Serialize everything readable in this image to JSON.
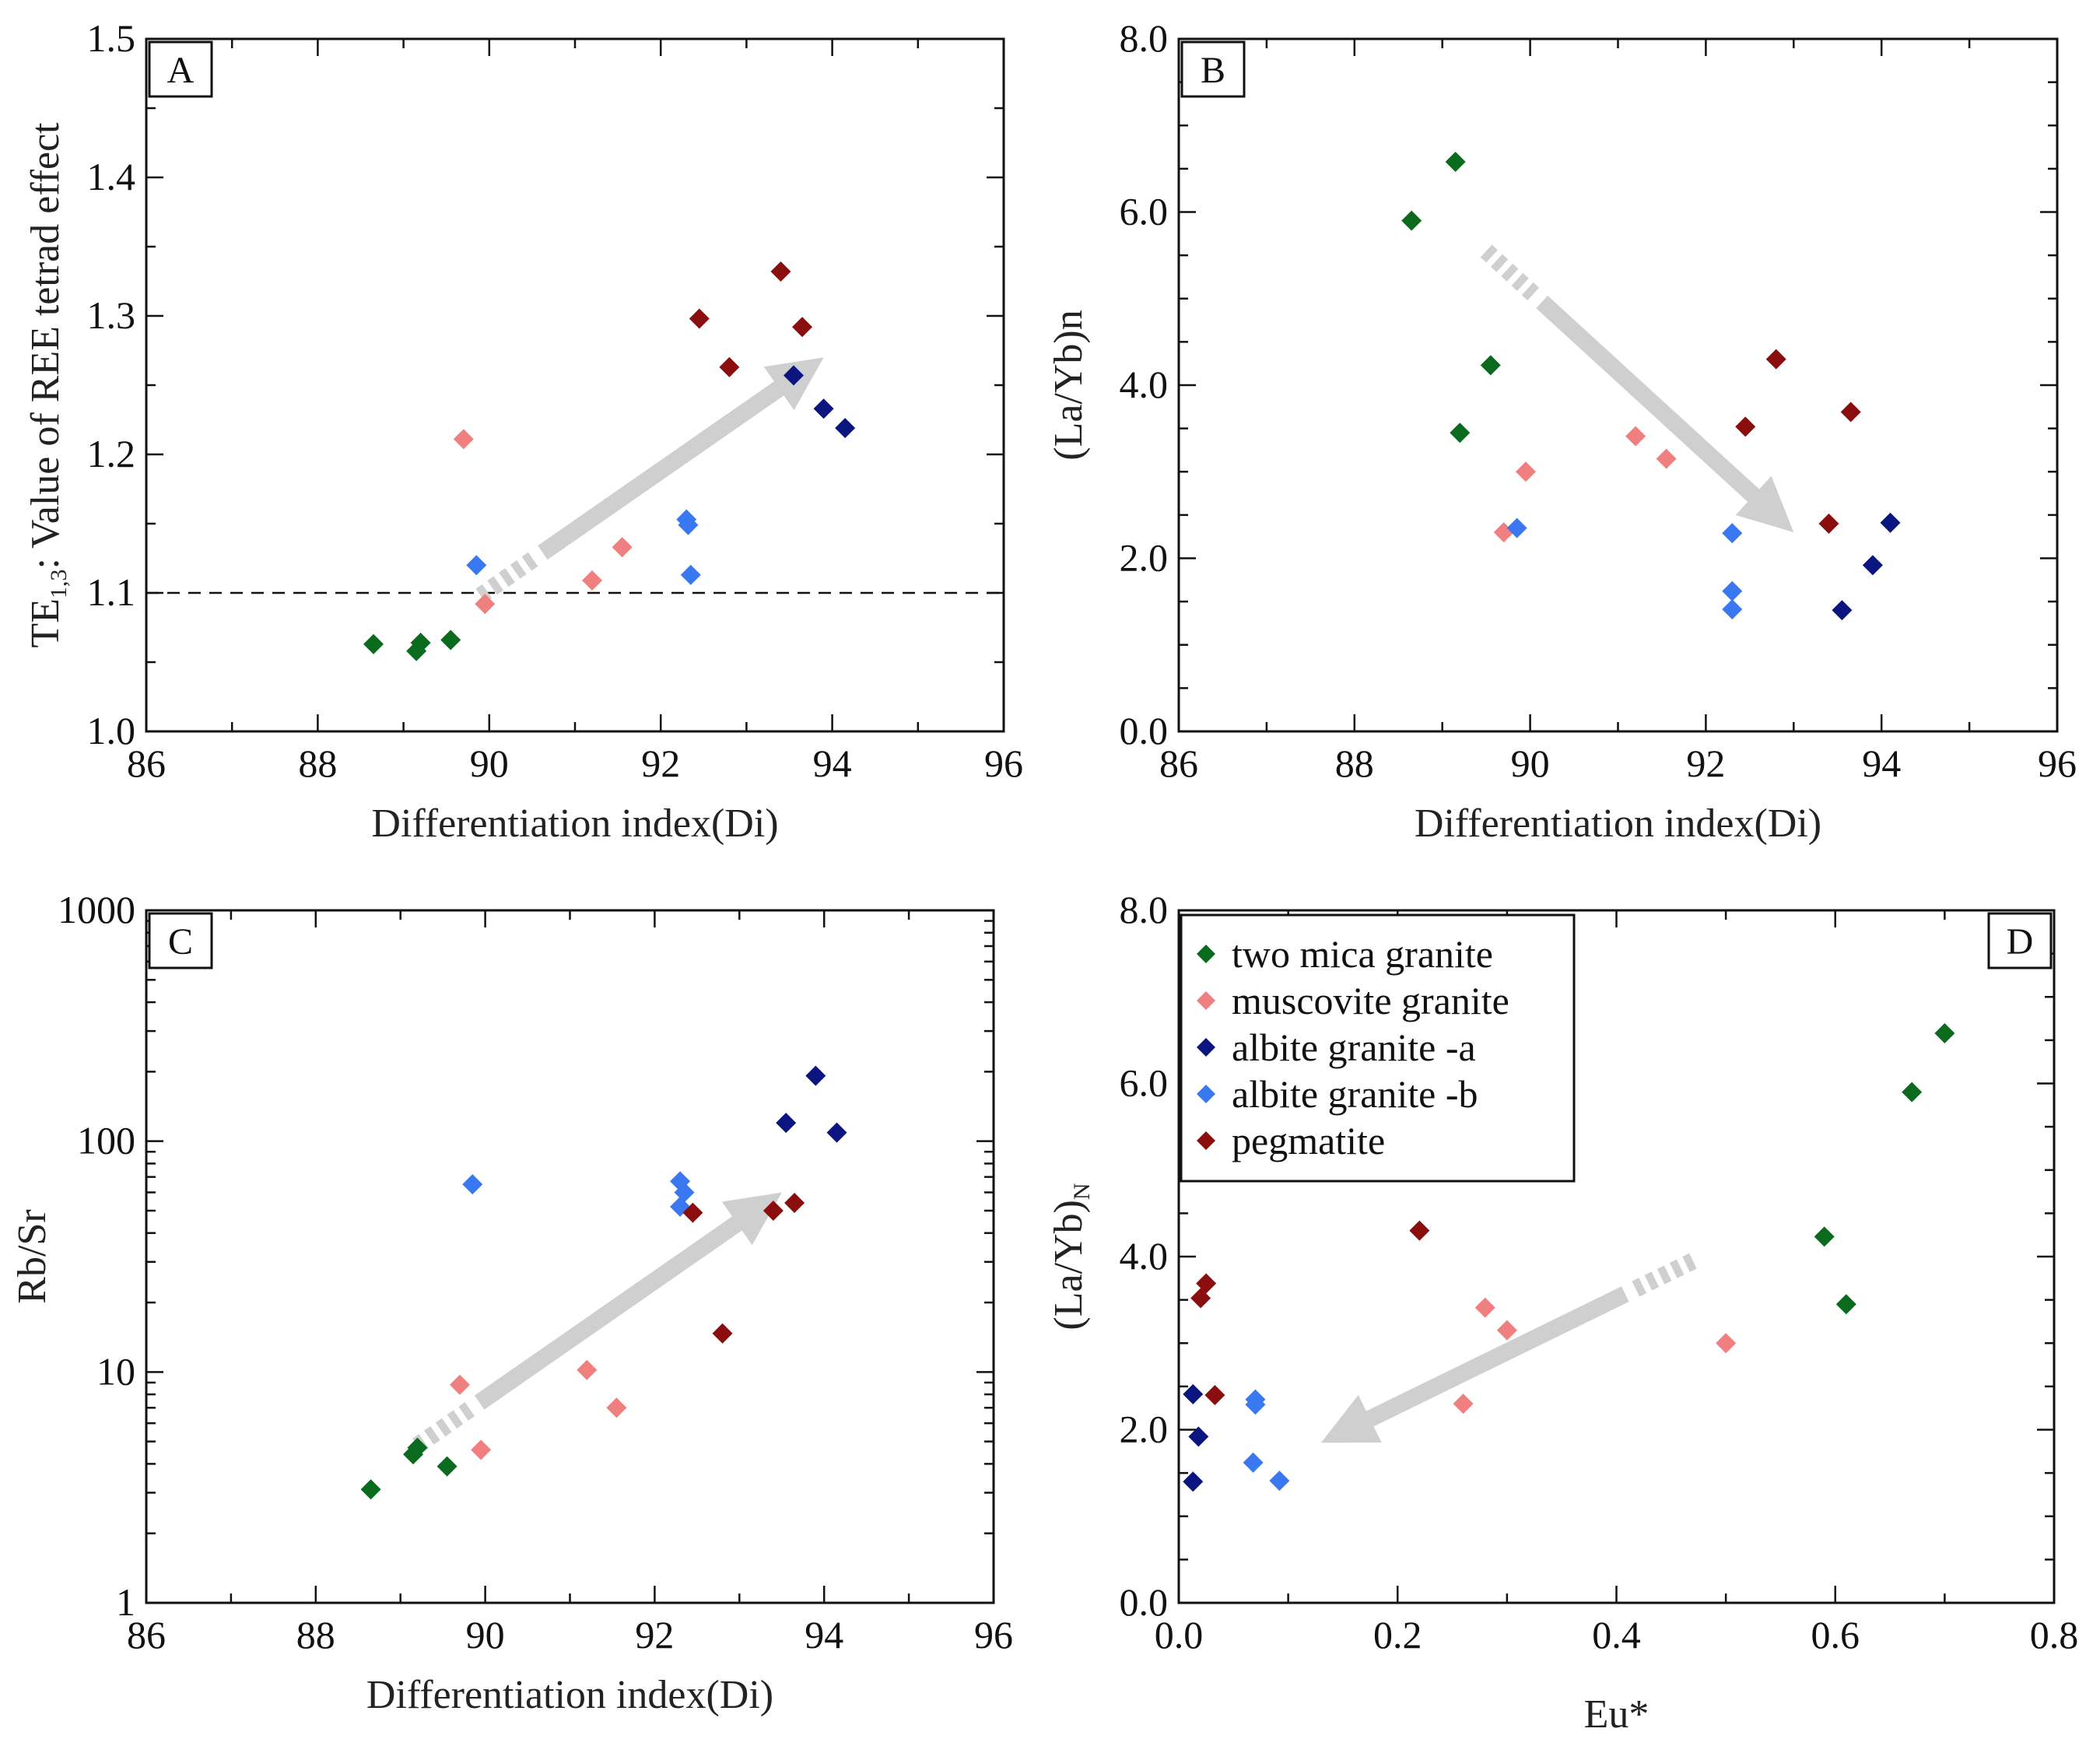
{
  "figure": {
    "colors": {
      "two_mica_granite": "#0a6b1e",
      "muscovite_granite": "#f08080",
      "albite_granite_a": "#0a1580",
      "albite_granite_b": "#3a78f2",
      "pegmatite": "#8b0e0e",
      "arrow": "#cfcfcf"
    },
    "legend": {
      "entries": [
        {
          "key": "two_mica_granite",
          "label": "two mica granite"
        },
        {
          "key": "muscovite_granite",
          "label": "muscovite granite"
        },
        {
          "key": "albite_granite_a",
          "label": "albite granite -a"
        },
        {
          "key": "albite_granite_b",
          "label": "albite granite -b"
        },
        {
          "key": "pegmatite",
          "label": "pegmatite"
        }
      ]
    }
  },
  "chart_data": [
    {
      "id": "A",
      "panel_label": "A",
      "type": "scatter",
      "xlabel": "Differentiation index(Di)",
      "ylabel_main": "TE",
      "ylabel_sub": "1,3",
      "ylabel_rest": ": Value of REE tetrad effect",
      "xlim": [
        86,
        96
      ],
      "ylim": [
        1.0,
        1.5
      ],
      "xticks": [
        86,
        88,
        90,
        92,
        94,
        96
      ],
      "yticks": [
        1.0,
        1.1,
        1.2,
        1.3,
        1.4,
        1.5
      ],
      "xtick_labels": [
        "86",
        "88",
        "90",
        "92",
        "94",
        "96"
      ],
      "ytick_labels": [
        "1.0",
        "1.1",
        "1.2",
        "1.3",
        "1.4",
        "1.5"
      ],
      "reference_line_y": 1.1,
      "trend_arrow": {
        "from": [
          89.9,
          1.098
        ],
        "to": [
          93.9,
          1.27
        ]
      },
      "series": [
        {
          "key": "two_mica_granite",
          "name": "two mica granite",
          "x": [
            88.65,
            89.15,
            89.2,
            89.55
          ],
          "y": [
            1.063,
            1.058,
            1.064,
            1.066
          ]
        },
        {
          "key": "muscovite_granite",
          "name": "muscovite granite",
          "x": [
            89.7,
            89.95,
            91.2,
            91.55
          ],
          "y": [
            1.211,
            1.092,
            1.109,
            1.133
          ]
        },
        {
          "key": "albite_granite_a",
          "name": "albite granite -a",
          "x": [
            93.55,
            93.9,
            94.15
          ],
          "y": [
            1.257,
            1.233,
            1.219
          ]
        },
        {
          "key": "albite_granite_b",
          "name": "albite granite -b",
          "x": [
            89.85,
            92.3,
            92.32,
            92.35
          ],
          "y": [
            1.12,
            1.153,
            1.149,
            1.113
          ]
        },
        {
          "key": "pegmatite",
          "name": "pegmatite",
          "x": [
            92.45,
            92.8,
            93.4,
            93.65
          ],
          "y": [
            1.298,
            1.263,
            1.332,
            1.292
          ]
        }
      ]
    },
    {
      "id": "B",
      "panel_label": "B",
      "type": "scatter",
      "xlabel": "Differentiation index(Di)",
      "ylabel_main": "(La/Yb)n",
      "ylabel_sub": "",
      "ylabel_rest": "",
      "xlim": [
        86,
        96
      ],
      "ylim": [
        0,
        8
      ],
      "xticks": [
        86,
        88,
        90,
        92,
        94,
        96
      ],
      "yticks": [
        0,
        2,
        4,
        6,
        8
      ],
      "xtick_labels": [
        "86",
        "88",
        "90",
        "92",
        "94",
        "96"
      ],
      "ytick_labels": [
        "0.0",
        "2.0",
        "4.0",
        "6.0",
        "8.0"
      ],
      "trend_arrow": {
        "from": [
          89.5,
          5.55
        ],
        "to": [
          93.0,
          2.3
        ]
      },
      "series": [
        {
          "key": "two_mica_granite",
          "name": "two mica granite",
          "x": [
            88.65,
            89.15,
            89.55,
            89.2
          ],
          "y": [
            5.9,
            6.58,
            4.23,
            3.45
          ]
        },
        {
          "key": "muscovite_granite",
          "name": "muscovite granite",
          "x": [
            89.7,
            89.95,
            91.2,
            91.55
          ],
          "y": [
            2.3,
            3.0,
            3.41,
            3.15
          ]
        },
        {
          "key": "albite_granite_a",
          "name": "albite granite -a",
          "x": [
            93.55,
            93.9,
            94.1
          ],
          "y": [
            1.4,
            1.92,
            2.41
          ]
        },
        {
          "key": "albite_granite_b",
          "name": "albite granite -b",
          "x": [
            89.85,
            92.3,
            92.3,
            92.3
          ],
          "y": [
            2.35,
            2.29,
            1.62,
            1.41
          ]
        },
        {
          "key": "pegmatite",
          "name": "pegmatite",
          "x": [
            92.45,
            92.8,
            93.4,
            93.65
          ],
          "y": [
            3.52,
            4.3,
            2.4,
            3.69
          ]
        }
      ]
    },
    {
      "id": "C",
      "panel_label": "C",
      "type": "scatter",
      "yscale": "log",
      "xlabel": "Differentiation index(Di)",
      "ylabel_main": "Rb/Sr",
      "ylabel_sub": "",
      "ylabel_rest": "",
      "xlim": [
        86,
        96
      ],
      "ylim": [
        1,
        1000
      ],
      "xticks": [
        86,
        88,
        90,
        92,
        94,
        96
      ],
      "yticks": [
        1,
        10,
        100,
        1000
      ],
      "xtick_labels": [
        "86",
        "88",
        "90",
        "92",
        "94",
        "96"
      ],
      "ytick_labels": [
        "1",
        "10",
        "100",
        "1000"
      ],
      "trend_arrow": {
        "from": [
          89.2,
          4.8
        ],
        "to": [
          93.5,
          60
        ]
      },
      "series": [
        {
          "key": "two_mica_granite",
          "name": "two mica granite",
          "x": [
            88.65,
            89.15,
            89.2,
            89.55
          ],
          "y": [
            3.1,
            4.4,
            4.7,
            3.9
          ]
        },
        {
          "key": "muscovite_granite",
          "name": "muscovite granite",
          "x": [
            89.7,
            89.95,
            91.2,
            91.55
          ],
          "y": [
            8.8,
            4.6,
            10.2,
            7.0
          ]
        },
        {
          "key": "albite_granite_a",
          "name": "albite granite -a",
          "x": [
            93.55,
            93.9,
            94.15
          ],
          "y": [
            120,
            192,
            109
          ]
        },
        {
          "key": "albite_granite_b",
          "name": "albite granite -b",
          "x": [
            89.85,
            92.3,
            92.35,
            92.3
          ],
          "y": [
            65,
            67,
            60,
            52
          ]
        },
        {
          "key": "pegmatite",
          "name": "pegmatite",
          "x": [
            92.45,
            92.8,
            93.4,
            93.65
          ],
          "y": [
            49,
            14.7,
            50,
            54
          ]
        }
      ]
    },
    {
      "id": "D",
      "panel_label": "D",
      "type": "scatter",
      "xlabel": "Eu*",
      "ylabel_main": "(La/Yb)",
      "ylabel_sub": "N",
      "ylabel_rest": "",
      "xlim": [
        0,
        0.8
      ],
      "ylim": [
        0,
        8
      ],
      "xticks": [
        0,
        0.2,
        0.4,
        0.6,
        0.8
      ],
      "yticks": [
        0,
        2,
        4,
        6,
        8
      ],
      "xtick_labels": [
        "0.0",
        "0.2",
        "0.4",
        "0.6",
        "0.8"
      ],
      "ytick_labels": [
        "0.0",
        "2.0",
        "4.0",
        "6.0",
        "8.0"
      ],
      "trend_arrow": {
        "from": [
          0.47,
          3.95
        ],
        "to": [
          0.13,
          1.85
        ]
      },
      "series": [
        {
          "key": "two_mica_granite",
          "name": "two mica granite",
          "x": [
            0.59,
            0.61,
            0.67,
            0.7
          ],
          "y": [
            4.23,
            3.45,
            5.9,
            6.58
          ]
        },
        {
          "key": "muscovite_granite",
          "name": "muscovite granite",
          "x": [
            0.26,
            0.28,
            0.3,
            0.5
          ],
          "y": [
            2.3,
            3.41,
            3.15,
            3.0
          ]
        },
        {
          "key": "albite_granite_a",
          "name": "albite granite -a",
          "x": [
            0.013,
            0.018,
            0.013
          ],
          "y": [
            2.41,
            1.92,
            1.4
          ]
        },
        {
          "key": "albite_granite_b",
          "name": "albite granite -b",
          "x": [
            0.07,
            0.07,
            0.068,
            0.092
          ],
          "y": [
            2.35,
            2.29,
            1.62,
            1.41
          ]
        },
        {
          "key": "pegmatite",
          "name": "pegmatite",
          "x": [
            0.02,
            0.025,
            0.033,
            0.22
          ],
          "y": [
            3.52,
            3.69,
            2.4,
            4.3
          ]
        }
      ]
    }
  ]
}
